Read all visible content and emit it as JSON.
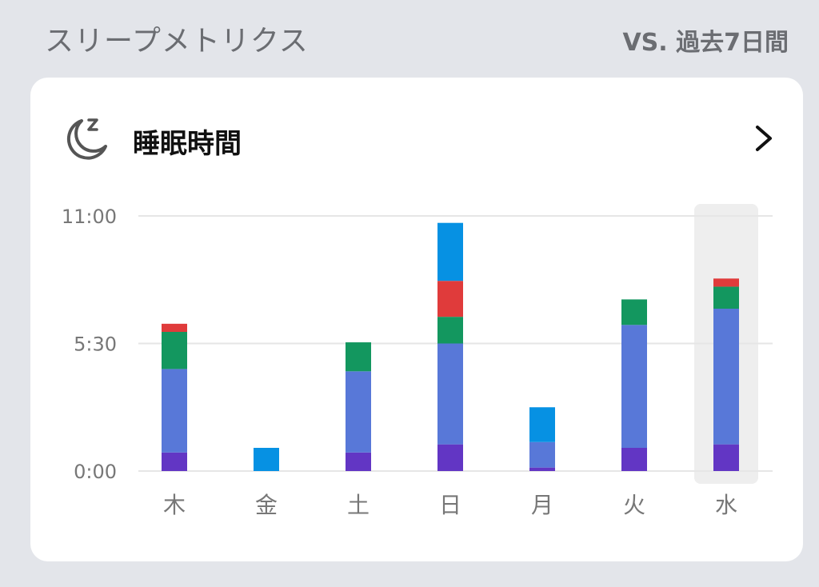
{
  "header": {
    "title": "スリープメトリクス",
    "compare": "VS. 過去7日間"
  },
  "card": {
    "title": "睡眠時間",
    "icon": "moon-sleep-icon",
    "action_icon": "chevron-right-icon"
  },
  "colors": {
    "deep": "#6236c4",
    "light": "#5878d8",
    "rem": "#13975f",
    "awake": "#e03b3b",
    "unclassified": "#0691e3",
    "highlight": "#eeeeee",
    "grid": "#e6e6e6"
  },
  "chart_data": {
    "type": "bar",
    "stacked": true,
    "y_ticks": [
      "0:00",
      "5:30",
      "11:00"
    ],
    "y_unit": "hours",
    "ylim": [
      0,
      11
    ],
    "categories": [
      "木",
      "金",
      "土",
      "日",
      "月",
      "火",
      "水"
    ],
    "highlighted_category": "水",
    "series": [
      {
        "key": "deep",
        "values": [
          0.8,
          0,
          0.8,
          1.15,
          0.15,
          1.0,
          1.15
        ]
      },
      {
        "key": "light",
        "values": [
          3.6,
          0,
          3.5,
          4.35,
          1.1,
          5.3,
          5.85
        ]
      },
      {
        "key": "rem",
        "values": [
          1.6,
          0,
          1.25,
          1.15,
          0,
          1.1,
          0.95
        ]
      },
      {
        "key": "awake",
        "values": [
          0.35,
          0,
          0,
          1.55,
          0,
          0,
          0.35
        ]
      },
      {
        "key": "unclassified",
        "values": [
          0,
          1.0,
          0,
          2.5,
          1.5,
          0,
          0
        ]
      }
    ]
  }
}
